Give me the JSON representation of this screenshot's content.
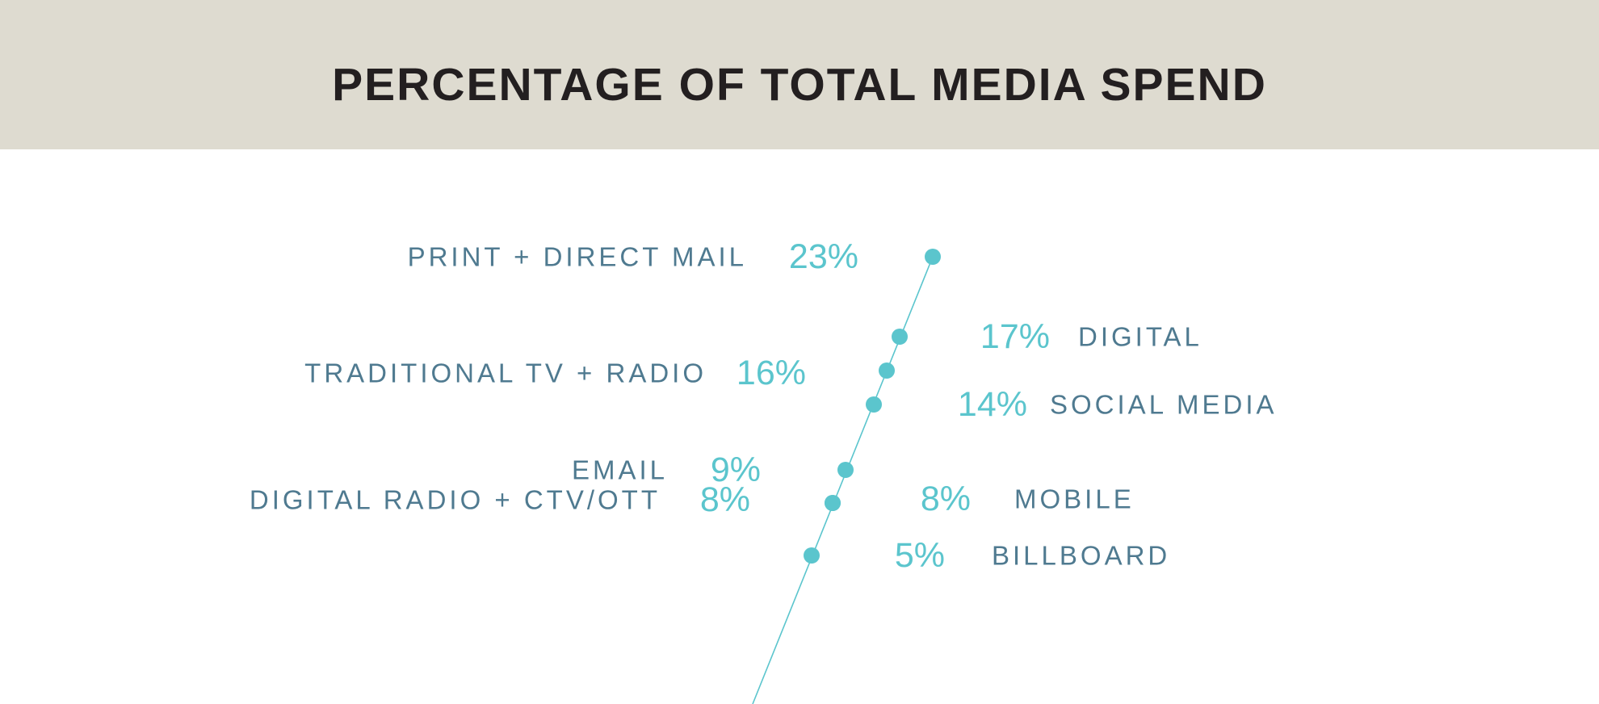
{
  "title": "PERCENTAGE OF TOTAL MEDIA SPEND",
  "colors": {
    "header_background": "#dedbd0",
    "title_text": "#231f20",
    "category_text": "#4f7a90",
    "accent": "#5bc5cd"
  },
  "chart_data": {
    "type": "scatter",
    "title": "PERCENTAGE OF TOTAL MEDIA SPEND",
    "xlabel": "",
    "ylabel": "",
    "unit": "%",
    "grid": false,
    "points": [
      {
        "category": "PRINT + DIRECT MAIL",
        "value": 23,
        "label": "23%",
        "side": "left"
      },
      {
        "category": "DIGITAL",
        "value": 17,
        "label": "17%",
        "side": "right"
      },
      {
        "category": "TRADITIONAL TV + RADIO",
        "value": 16,
        "label": "16%",
        "side": "left"
      },
      {
        "category": "SOCIAL MEDIA",
        "value": 14,
        "label": "14%",
        "side": "right"
      },
      {
        "category": "EMAIL",
        "value": 9,
        "label": "9%",
        "side": "left"
      },
      {
        "category": "DIGITAL RADIO + CTV/OTT",
        "value": 8,
        "label": "8%",
        "side": "left"
      },
      {
        "category": "MOBILE",
        "value": 8,
        "label": "8%",
        "side": "right"
      },
      {
        "category": "BILLBOARD",
        "value": 5,
        "label": "5%",
        "side": "right"
      }
    ]
  }
}
